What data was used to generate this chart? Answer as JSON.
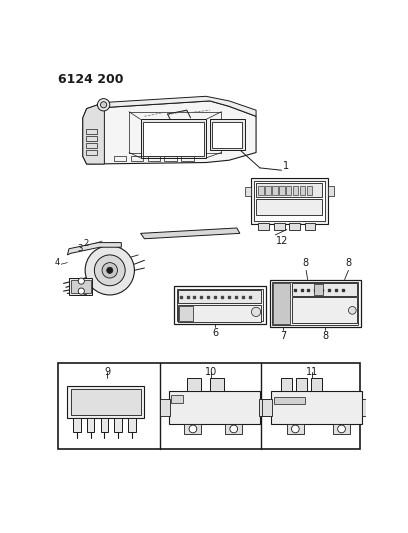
{
  "title": "6124 200",
  "bg_color": "#ffffff",
  "line_color": "#1a1a1a",
  "fig_width": 4.08,
  "fig_height": 5.33,
  "dpi": 100
}
